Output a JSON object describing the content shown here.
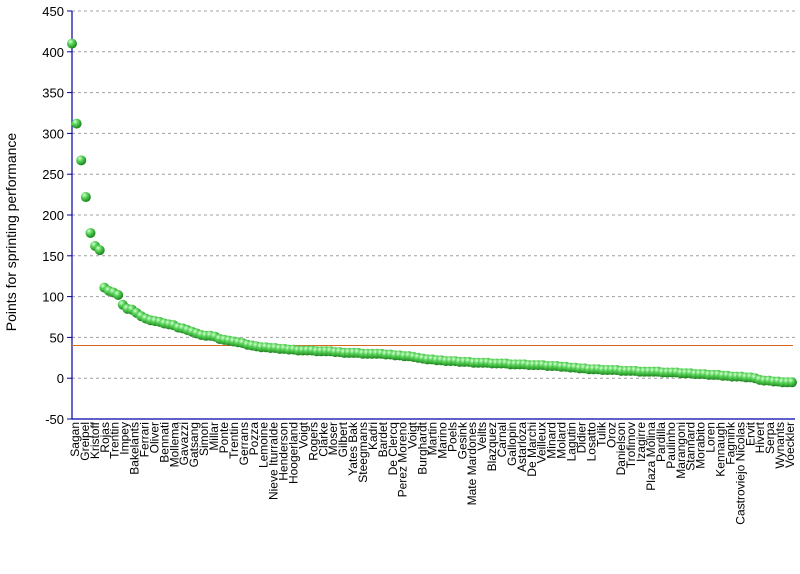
{
  "chart_data": {
    "type": "scatter",
    "title": "",
    "xlabel": "",
    "ylabel": "Points for sprinting performance",
    "ylim": [
      -50,
      450
    ],
    "yticks": [
      450,
      400,
      350,
      300,
      250,
      200,
      150,
      100,
      50,
      0,
      -50
    ],
    "grid": "horizontal dashed",
    "legend": "none",
    "reference_line": {
      "value": 40,
      "color": "#d2691e"
    },
    "colors": {
      "axis": "#0000aa",
      "grid": "#a0a0a0",
      "point": "#2eaa2e",
      "point_highlight": "#b6f5b6"
    },
    "labels": [
      "Sagan",
      "Greipel",
      "Kristoff",
      "Rojas",
      "Trentin",
      "Impey",
      "Bakelants",
      "Ferrari",
      "Oliver",
      "Bennati",
      "Mollema",
      "Gavazzi",
      "Gatsang",
      "Simon",
      "Millar",
      "Ponte",
      "Trentin",
      "Gerrans",
      "Pozza",
      "Lemoine",
      "Nieve Iturralde",
      "Henderson",
      "Hoogerland",
      "Voigt",
      "Rogers",
      "Clarke",
      "Moser",
      "Gilbert",
      "Yates Bak",
      "Steegmans",
      "Kadri",
      "Bardet",
      "De Clercq",
      "Perez Moreno",
      "Voigt",
      "Burghardt",
      "Martin",
      "Marino",
      "Poels",
      "Gesink",
      "Mate Mardones",
      "Veilts",
      "Blazquez",
      "Carnal",
      "Gallopin",
      "Astarloza",
      "De Marchi",
      "Veilleux",
      "Minard",
      "Molard",
      "Lagutin",
      "Didier",
      "Losatto",
      "Tulik",
      "Oroz",
      "Danielson",
      "Trofimov",
      "Izagirre",
      "Plaza Molina",
      "Pardilla",
      "Paulinho",
      "Marangoni",
      "Stannard",
      "Morabito",
      "Loren",
      "Kennaugh",
      "Fagnink",
      "Castroviejo Nicolas",
      "Ervit",
      "Hivert",
      "Serpa",
      "Wynants",
      "Voeckler"
    ],
    "values": [
      410,
      312,
      267,
      222,
      178,
      162,
      157,
      111,
      107,
      105,
      102,
      90,
      85,
      84,
      80,
      76,
      73,
      71,
      70,
      69,
      67,
      66,
      65,
      62,
      61,
      59,
      57,
      55,
      53,
      52,
      52,
      51,
      48,
      47,
      46,
      45,
      44,
      43,
      41,
      40,
      39,
      38,
      38,
      37,
      37,
      36,
      36,
      35,
      35,
      34,
      34,
      34,
      34,
      33,
      33,
      33,
      33,
      32,
      32,
      31,
      31,
      31,
      31,
      30,
      30,
      30,
      30,
      30,
      29,
      29,
      28,
      28,
      27,
      27,
      26,
      25,
      24,
      23,
      23,
      22,
      22,
      21,
      21,
      21,
      20,
      20,
      20,
      19,
      19,
      19,
      19,
      18,
      18,
      18,
      18,
      17,
      17,
      17,
      17,
      16,
      16,
      16,
      16,
      15,
      15,
      15,
      14,
      14,
      13,
      13,
      12,
      12,
      11,
      11,
      11,
      10,
      10,
      10,
      10,
      9,
      9,
      9,
      9,
      8,
      8,
      8,
      8,
      8,
      7,
      7,
      7,
      7,
      6,
      6,
      6,
      5,
      5,
      5,
      4,
      4,
      4,
      3,
      3,
      2,
      2,
      2,
      1,
      1,
      0,
      -2,
      -3,
      -3,
      -4,
      -4,
      -5,
      -5,
      -5
    ]
  }
}
